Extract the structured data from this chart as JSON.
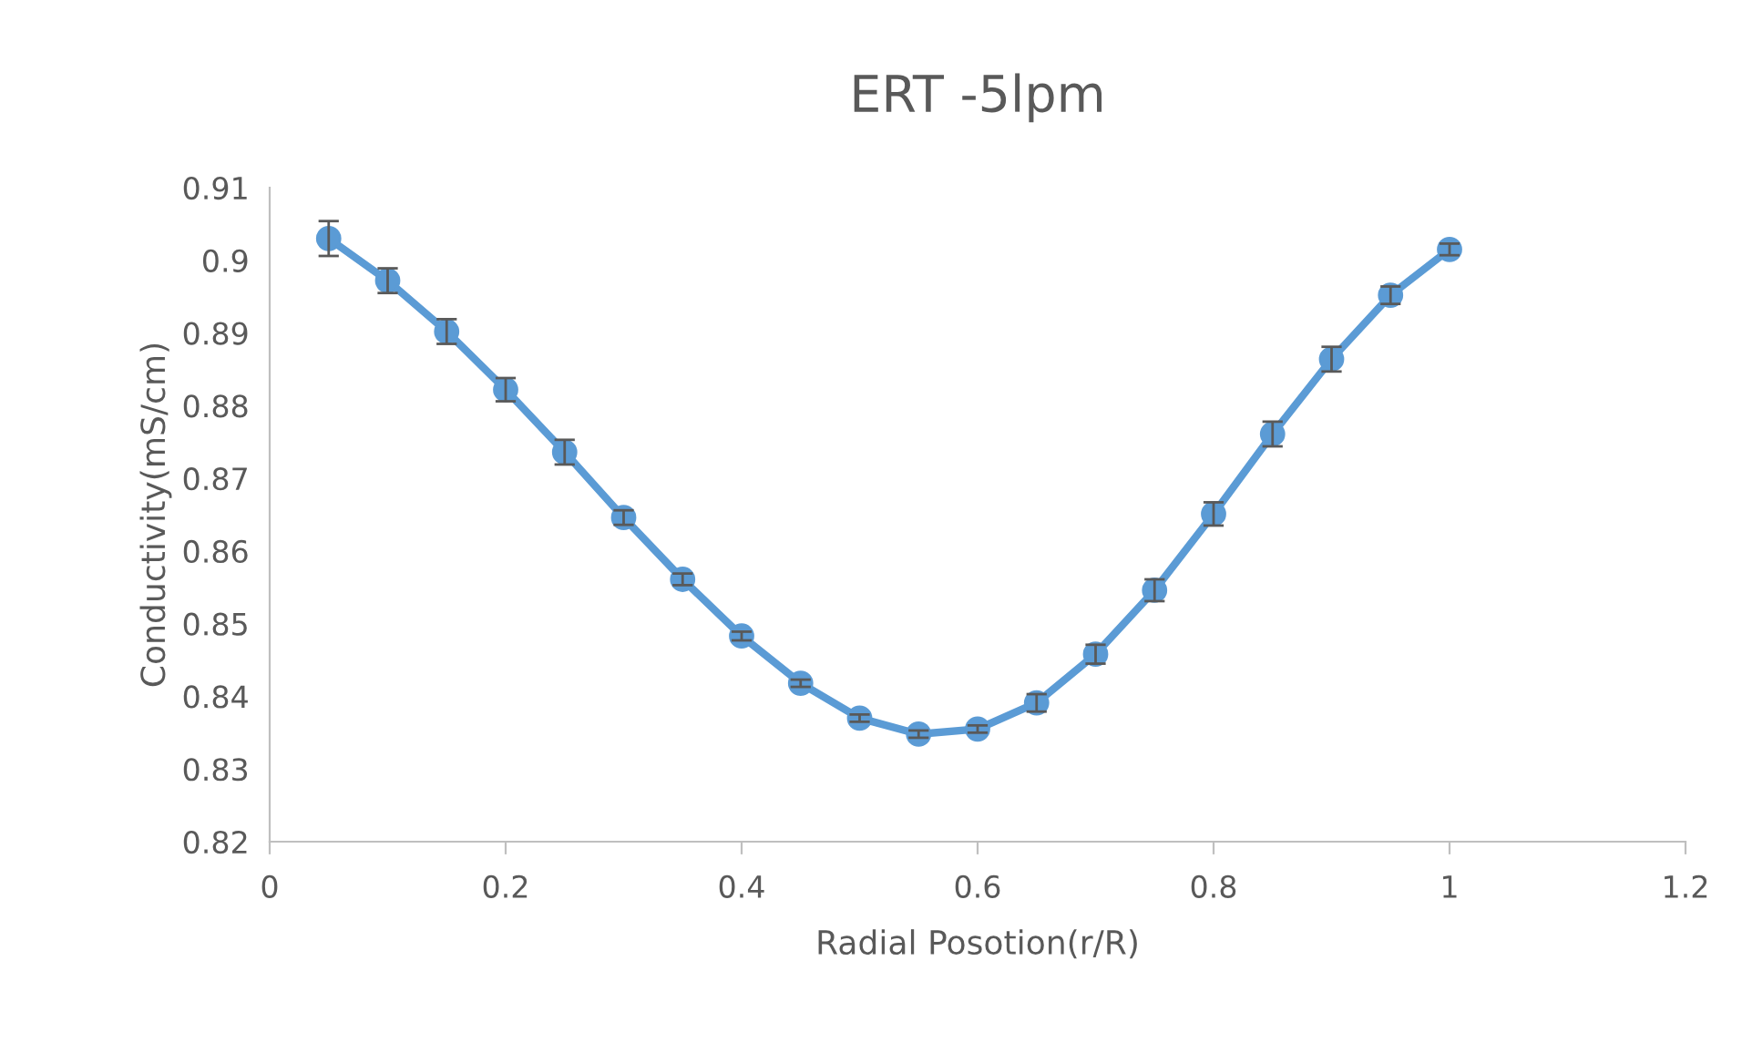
{
  "chart_data": {
    "type": "line",
    "title": "ERT -5lpm",
    "xlabel": "Radial Posotion(r/R)",
    "ylabel": "Conductivity(mS/cm)",
    "x": [
      0.05,
      0.1,
      0.15,
      0.2,
      0.25,
      0.3,
      0.35,
      0.4,
      0.45,
      0.5,
      0.55,
      0.6,
      0.65,
      0.7,
      0.75,
      0.8,
      0.85,
      0.9,
      0.95,
      1.0
    ],
    "series": [
      {
        "color": "#5b9bd5",
        "values": [
          0.903,
          0.8972,
          0.8902,
          0.8822,
          0.8736,
          0.8646,
          0.8561,
          0.8483,
          0.8418,
          0.837,
          0.8348,
          0.8355,
          0.8391,
          0.8458,
          0.8546,
          0.8651,
          0.8761,
          0.8864,
          0.8952,
          0.9015
        ],
        "errors": [
          0.0024,
          0.0017,
          0.0017,
          0.0016,
          0.0017,
          0.001,
          0.0008,
          0.0006,
          0.0005,
          0.0005,
          0.0005,
          0.0005,
          0.0012,
          0.0013,
          0.0015,
          0.0016,
          0.0017,
          0.0017,
          0.0012,
          0.0008
        ]
      }
    ],
    "xlim": [
      0,
      1.2
    ],
    "xticks": [
      0,
      {
        "value": 0.2,
        "label": "0.2"
      },
      {
        "value": 0.4,
        "label": "0.4"
      },
      {
        "value": 0.6,
        "label": "0.6"
      },
      {
        "value": 0.8,
        "label": "0.8"
      },
      1,
      {
        "value": 1.2,
        "label": "1.2"
      }
    ],
    "ylim": [
      0.82,
      0.91
    ],
    "yticks": [
      0.82,
      0.83,
      0.84,
      0.85,
      0.86,
      0.87,
      0.88,
      0.89,
      {
        "value": 0.9,
        "label": "0.9"
      },
      0.91
    ],
    "grid": false,
    "legend": false,
    "marker": "circle",
    "line_style": "solid"
  }
}
